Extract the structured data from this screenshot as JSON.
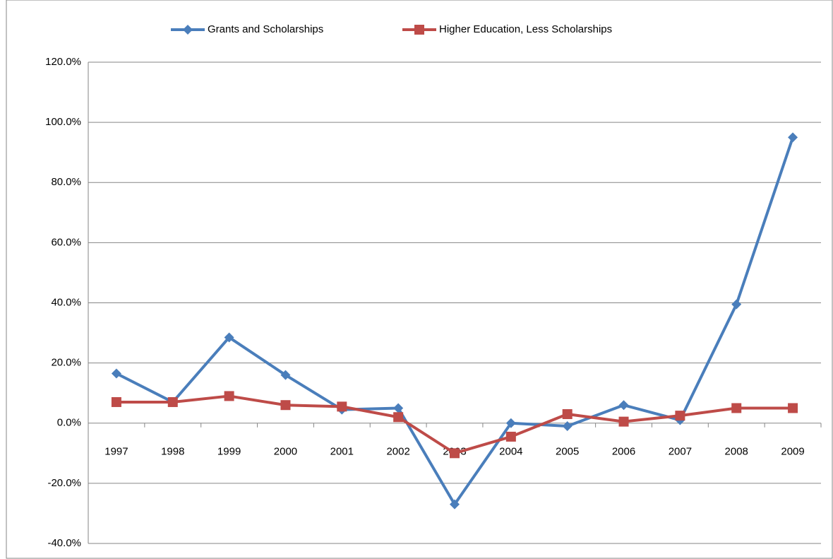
{
  "chart_data": {
    "type": "line",
    "categories": [
      "1997",
      "1998",
      "1999",
      "2000",
      "2001",
      "2002",
      "2003",
      "2004",
      "2005",
      "2006",
      "2007",
      "2008",
      "2009"
    ],
    "series": [
      {
        "name": "Grants and Scholarships",
        "color": "#4a7ebb",
        "marker": "diamond",
        "values": [
          16.5,
          7,
          28.5,
          16,
          4.5,
          5,
          -27,
          0,
          -1,
          6,
          1,
          39.5,
          95
        ]
      },
      {
        "name": "Higher Education, Less Scholarships",
        "color": "#be4b48",
        "marker": "square",
        "values": [
          7,
          7,
          9,
          6,
          5.5,
          2,
          -10,
          -4.5,
          3,
          0.5,
          2.5,
          5,
          5
        ]
      }
    ],
    "ylim": [
      -40,
      120
    ],
    "yticks": [
      {
        "value": -40,
        "label": "-40.0%"
      },
      {
        "value": -20,
        "label": "-20.0%"
      },
      {
        "value": 0,
        "label": "0.0%"
      },
      {
        "value": 20,
        "label": "20.0%"
      },
      {
        "value": 40,
        "label": "40.0%"
      },
      {
        "value": 60,
        "label": "60.0%"
      },
      {
        "value": 80,
        "label": "80.0%"
      },
      {
        "value": 100,
        "label": "100.0%"
      },
      {
        "value": 120,
        "label": "120.0%"
      }
    ],
    "grid": true,
    "legend": "top"
  }
}
